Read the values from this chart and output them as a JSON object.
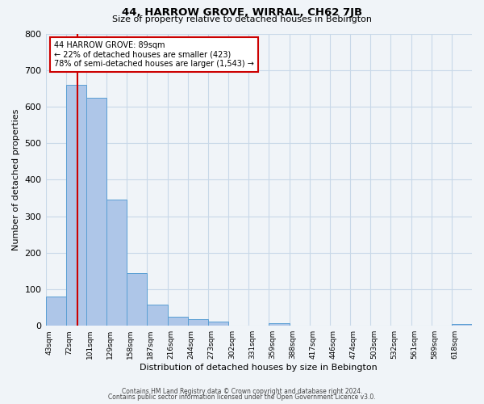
{
  "title": "44, HARROW GROVE, WIRRAL, CH62 7JB",
  "subtitle": "Size of property relative to detached houses in Bebington",
  "bar_labels": [
    "43sqm",
    "72sqm",
    "101sqm",
    "129sqm",
    "158sqm",
    "187sqm",
    "216sqm",
    "244sqm",
    "273sqm",
    "302sqm",
    "331sqm",
    "359sqm",
    "388sqm",
    "417sqm",
    "446sqm",
    "474sqm",
    "503sqm",
    "532sqm",
    "561sqm",
    "589sqm",
    "618sqm"
  ],
  "bar_heights": [
    80,
    660,
    625,
    345,
    145,
    57,
    25,
    18,
    12,
    0,
    0,
    7,
    0,
    0,
    0,
    0,
    0,
    0,
    0,
    0,
    5
  ],
  "bar_color": "#aec6e8",
  "bar_edge_color": "#5a9fd4",
  "bin_edges": [
    43,
    72,
    101,
    129,
    158,
    187,
    216,
    244,
    273,
    302,
    331,
    359,
    388,
    417,
    446,
    474,
    503,
    532,
    561,
    589,
    618
  ],
  "property_sqm": 89,
  "property_line_color": "#cc0000",
  "xlabel": "Distribution of detached houses by size in Bebington",
  "ylabel": "Number of detached properties",
  "ylim": [
    0,
    800
  ],
  "yticks": [
    0,
    100,
    200,
    300,
    400,
    500,
    600,
    700,
    800
  ],
  "annotation_title": "44 HARROW GROVE: 89sqm",
  "annotation_line1": "← 22% of detached houses are smaller (423)",
  "annotation_line2": "78% of semi-detached houses are larger (1,543) →",
  "annotation_box_color": "#ffffff",
  "annotation_box_edge": "#cc0000",
  "grid_color": "#c8d8e8",
  "background_color": "#f0f4f8",
  "footer1": "Contains HM Land Registry data © Crown copyright and database right 2024.",
  "footer2": "Contains public sector information licensed under the Open Government Licence v3.0."
}
